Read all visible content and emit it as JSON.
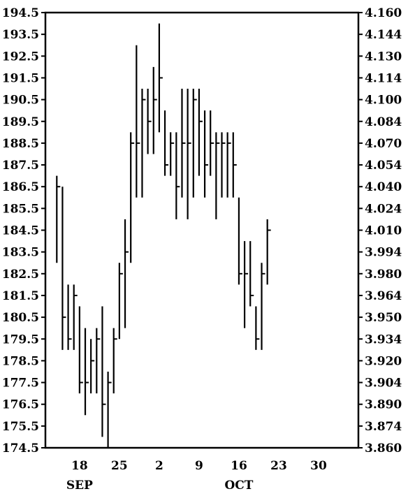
{
  "chart_data": {
    "type": "ohlc",
    "title": "",
    "xlabel": "",
    "ylabel": "",
    "grid": false,
    "left_axis": {
      "ylim": [
        174.5,
        194.5
      ],
      "ticks": [
        "194.5",
        "193.5",
        "192.5",
        "191.5",
        "190.5",
        "189.5",
        "188.5",
        "187.5",
        "186.5",
        "185.5",
        "184.5",
        "183.5",
        "182.5",
        "181.5",
        "180.5",
        "179.5",
        "178.5",
        "177.5",
        "176.5",
        "175.5",
        "174.5"
      ]
    },
    "right_axis": {
      "ylim": [
        3.86,
        4.16
      ],
      "ticks": [
        "4.160",
        "4.144",
        "4.130",
        "4.114",
        "4.100",
        "4.084",
        "4.070",
        "4.054",
        "4.040",
        "4.024",
        "4.010",
        "3.994",
        "3.980",
        "3.964",
        "3.950",
        "3.934",
        "3.920",
        "3.904",
        "3.890",
        "3.874",
        "3.860"
      ]
    },
    "x_ticks": [
      {
        "label": "18",
        "day": 18
      },
      {
        "label": "25",
        "day": 25
      },
      {
        "label": "2",
        "day": 32
      },
      {
        "label": "9",
        "day": 39
      },
      {
        "label": "16",
        "day": 46
      },
      {
        "label": "23",
        "day": 53
      },
      {
        "label": "30",
        "day": 60
      }
    ],
    "x_range": [
      12,
      67
    ],
    "month_labels": [
      {
        "label": "SEP",
        "day": 18
      },
      {
        "label": "OCT",
        "day": 46
      }
    ],
    "bars": [
      {
        "day": 14,
        "high": 187.0,
        "low": 183.0,
        "close": 186.5
      },
      {
        "day": 15,
        "high": 186.5,
        "low": 179.0,
        "close": 180.5
      },
      {
        "day": 16,
        "high": 182.0,
        "low": 179.0,
        "close": 179.5
      },
      {
        "day": 17,
        "high": 182.0,
        "low": 179.0,
        "close": 181.5
      },
      {
        "day": 18,
        "high": 181.0,
        "low": 177.0,
        "close": 177.5
      },
      {
        "day": 19,
        "high": 180.0,
        "low": 176.0,
        "close": 177.5
      },
      {
        "day": 20,
        "high": 179.5,
        "low": 177.0,
        "close": 178.5
      },
      {
        "day": 21,
        "high": 180.0,
        "low": 177.0,
        "close": 179.5
      },
      {
        "day": 22,
        "high": 181.0,
        "low": 175.0,
        "close": 176.5
      },
      {
        "day": 23,
        "high": 178.0,
        "low": 174.5,
        "close": 177.5
      },
      {
        "day": 24,
        "high": 180.0,
        "low": 177.0,
        "close": 179.5
      },
      {
        "day": 25,
        "high": 183.0,
        "low": 179.5,
        "close": 182.5
      },
      {
        "day": 26,
        "high": 185.0,
        "low": 180.0,
        "close": 183.5
      },
      {
        "day": 27,
        "high": 189.0,
        "low": 183.0,
        "close": 188.5
      },
      {
        "day": 28,
        "high": 193.0,
        "low": 186.0,
        "close": 188.5
      },
      {
        "day": 29,
        "high": 191.0,
        "low": 186.0,
        "close": 190.5
      },
      {
        "day": 30,
        "high": 191.0,
        "low": 188.0,
        "close": 189.5
      },
      {
        "day": 31,
        "high": 192.0,
        "low": 188.0,
        "close": 190.5
      },
      {
        "day": 32,
        "high": 194.0,
        "low": 189.0,
        "close": 191.5
      },
      {
        "day": 33,
        "high": 190.0,
        "low": 187.0,
        "close": 187.5
      },
      {
        "day": 34,
        "high": 189.0,
        "low": 187.0,
        "close": 188.5
      },
      {
        "day": 35,
        "high": 189.0,
        "low": 185.0,
        "close": 186.5
      },
      {
        "day": 36,
        "high": 191.0,
        "low": 186.0,
        "close": 188.5
      },
      {
        "day": 37,
        "high": 191.0,
        "low": 185.0,
        "close": 188.5
      },
      {
        "day": 38,
        "high": 191.0,
        "low": 186.0,
        "close": 190.5
      },
      {
        "day": 39,
        "high": 191.0,
        "low": 187.0,
        "close": 189.5
      },
      {
        "day": 40,
        "high": 190.0,
        "low": 186.0,
        "close": 187.5
      },
      {
        "day": 41,
        "high": 190.0,
        "low": 187.0,
        "close": 188.5
      },
      {
        "day": 42,
        "high": 189.0,
        "low": 185.0,
        "close": 188.5
      },
      {
        "day": 43,
        "high": 189.0,
        "low": 186.0,
        "close": 188.5
      },
      {
        "day": 44,
        "high": 189.0,
        "low": 186.0,
        "close": 188.5
      },
      {
        "day": 45,
        "high": 189.0,
        "low": 186.0,
        "close": 187.5
      },
      {
        "day": 46,
        "high": 186.0,
        "low": 182.0,
        "close": 182.5
      },
      {
        "day": 47,
        "high": 184.0,
        "low": 180.0,
        "close": 182.5
      },
      {
        "day": 48,
        "high": 184.0,
        "low": 181.0,
        "close": 181.5
      },
      {
        "day": 49,
        "high": 181.0,
        "low": 179.0,
        "close": 179.5
      },
      {
        "day": 50,
        "high": 183.0,
        "low": 179.0,
        "close": 182.5
      },
      {
        "day": 51,
        "high": 185.0,
        "low": 182.0,
        "close": 184.5
      }
    ]
  }
}
